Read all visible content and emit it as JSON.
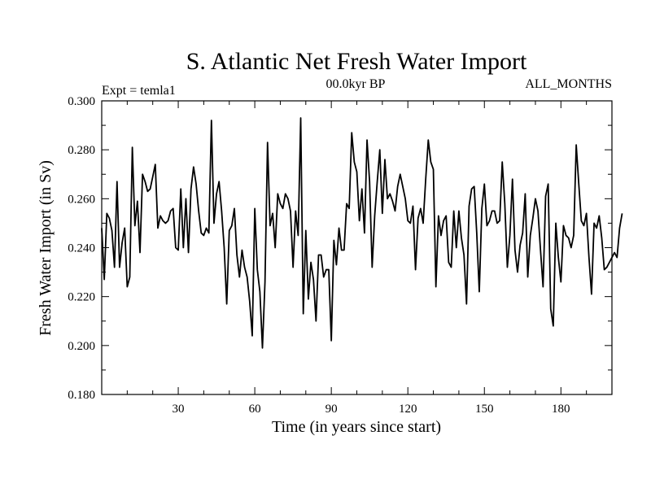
{
  "chart_data": {
    "type": "line",
    "title": "S. Atlantic Net Fresh Water Import",
    "subtitle_left": "Expt = temla1",
    "subtitle_center": "00.0kyr BP",
    "subtitle_right": "ALL_MONTHS",
    "xlabel": "Time (in years since start)",
    "ylabel": "Fresh Water Import (in Sv)",
    "xlim": [
      0,
      200
    ],
    "ylim": [
      0.18,
      0.3
    ],
    "x_ticks": [
      30,
      60,
      90,
      120,
      150,
      180
    ],
    "x_tick_labels": [
      "30",
      "60",
      "90",
      "120",
      "150",
      "180"
    ],
    "y_ticks": [
      0.18,
      0.2,
      0.22,
      0.24,
      0.26,
      0.28,
      0.3
    ],
    "y_tick_labels": [
      "0.180",
      "0.200",
      "0.220",
      "0.240",
      "0.260",
      "0.280",
      "0.300"
    ],
    "grid": false,
    "line_color": "#000000",
    "series": [
      {
        "name": "Fresh Water Import",
        "x_start": 0,
        "x_step": 1,
        "values": [
          0.248,
          0.227,
          0.254,
          0.252,
          0.247,
          0.232,
          0.267,
          0.232,
          0.242,
          0.248,
          0.224,
          0.228,
          0.281,
          0.249,
          0.259,
          0.238,
          0.27,
          0.267,
          0.263,
          0.264,
          0.269,
          0.274,
          0.248,
          0.253,
          0.251,
          0.25,
          0.251,
          0.255,
          0.256,
          0.24,
          0.239,
          0.264,
          0.24,
          0.26,
          0.238,
          0.264,
          0.273,
          0.266,
          0.255,
          0.246,
          0.245,
          0.248,
          0.246,
          0.292,
          0.25,
          0.262,
          0.267,
          0.255,
          0.24,
          0.217,
          0.247,
          0.249,
          0.256,
          0.237,
          0.228,
          0.239,
          0.232,
          0.228,
          0.218,
          0.204,
          0.256,
          0.231,
          0.222,
          0.199,
          0.226,
          0.283,
          0.249,
          0.254,
          0.24,
          0.262,
          0.258,
          0.256,
          0.262,
          0.26,
          0.255,
          0.232,
          0.255,
          0.245,
          0.293,
          0.213,
          0.247,
          0.219,
          0.234,
          0.227,
          0.21,
          0.237,
          0.237,
          0.228,
          0.231,
          0.231,
          0.202,
          0.243,
          0.233,
          0.248,
          0.239,
          0.239,
          0.258,
          0.256,
          0.287,
          0.275,
          0.271,
          0.251,
          0.264,
          0.246,
          0.284,
          0.267,
          0.232,
          0.253,
          0.267,
          0.28,
          0.254,
          0.276,
          0.26,
          0.262,
          0.259,
          0.255,
          0.265,
          0.27,
          0.265,
          0.26,
          0.251,
          0.25,
          0.257,
          0.231,
          0.252,
          0.256,
          0.25,
          0.268,
          0.284,
          0.275,
          0.272,
          0.224,
          0.253,
          0.245,
          0.251,
          0.253,
          0.234,
          0.232,
          0.255,
          0.24,
          0.255,
          0.244,
          0.237,
          0.217,
          0.257,
          0.264,
          0.265,
          0.246,
          0.222,
          0.256,
          0.266,
          0.249,
          0.251,
          0.255,
          0.255,
          0.25,
          0.251,
          0.275,
          0.258,
          0.232,
          0.245,
          0.268,
          0.239,
          0.23,
          0.241,
          0.246,
          0.262,
          0.228,
          0.245,
          0.252,
          0.26,
          0.255,
          0.239,
          0.224,
          0.261,
          0.266,
          0.215,
          0.208,
          0.25,
          0.236,
          0.226,
          0.249,
          0.245,
          0.244,
          0.24,
          0.245,
          0.282,
          0.266,
          0.251,
          0.249,
          0.254,
          0.236,
          0.221,
          0.25,
          0.248,
          0.253,
          0.244,
          0.231,
          0.232,
          0.234,
          0.236,
          0.238,
          0.236,
          0.248,
          0.254
        ]
      }
    ]
  }
}
